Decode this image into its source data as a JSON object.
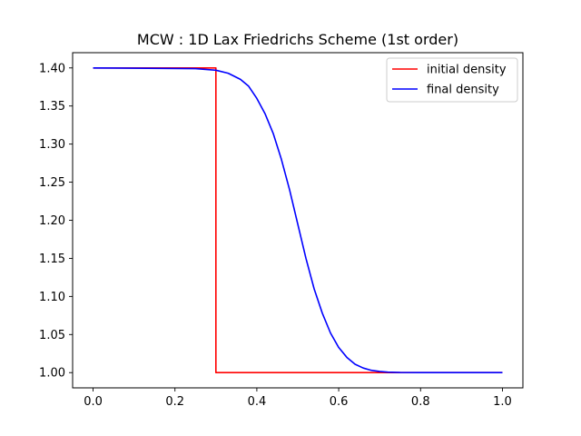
{
  "chart_data": {
    "type": "line",
    "title": "MCW : 1D Lax Friedrichs Scheme (1st order)",
    "xlabel": "",
    "ylabel": "",
    "xlim": [
      -0.05,
      1.05
    ],
    "ylim": [
      0.98,
      1.42
    ],
    "grid": false,
    "legend_position": "top-right",
    "x_ticks": [
      0.0,
      0.2,
      0.4,
      0.6,
      0.8,
      1.0
    ],
    "x_tick_labels": [
      "0.0",
      "0.2",
      "0.4",
      "0.6",
      "0.8",
      "1.0"
    ],
    "y_ticks": [
      1.0,
      1.05,
      1.1,
      1.15,
      1.2,
      1.25,
      1.3,
      1.35,
      1.4
    ],
    "y_tick_labels": [
      "1.00",
      "1.05",
      "1.10",
      "1.15",
      "1.20",
      "1.25",
      "1.30",
      "1.35",
      "1.40"
    ],
    "series": [
      {
        "name": "initial density",
        "color": "#ff0000",
        "x": [
          0.0,
          0.3,
          0.3,
          1.0
        ],
        "y": [
          1.4,
          1.4,
          1.0,
          1.0
        ]
      },
      {
        "name": "final density",
        "color": "#0000ff",
        "x": [
          0.0,
          0.25,
          0.3,
          0.33,
          0.36,
          0.38,
          0.4,
          0.42,
          0.44,
          0.46,
          0.48,
          0.5,
          0.52,
          0.54,
          0.56,
          0.58,
          0.6,
          0.62,
          0.64,
          0.66,
          0.68,
          0.7,
          0.72,
          0.75,
          0.8,
          0.9,
          1.0
        ],
        "y": [
          1.4,
          1.399,
          1.397,
          1.393,
          1.385,
          1.376,
          1.36,
          1.34,
          1.314,
          1.28,
          1.24,
          1.195,
          1.15,
          1.11,
          1.078,
          1.052,
          1.033,
          1.02,
          1.011,
          1.006,
          1.003,
          1.0015,
          1.0007,
          1.0002,
          1.0,
          1.0,
          1.0
        ]
      }
    ]
  }
}
